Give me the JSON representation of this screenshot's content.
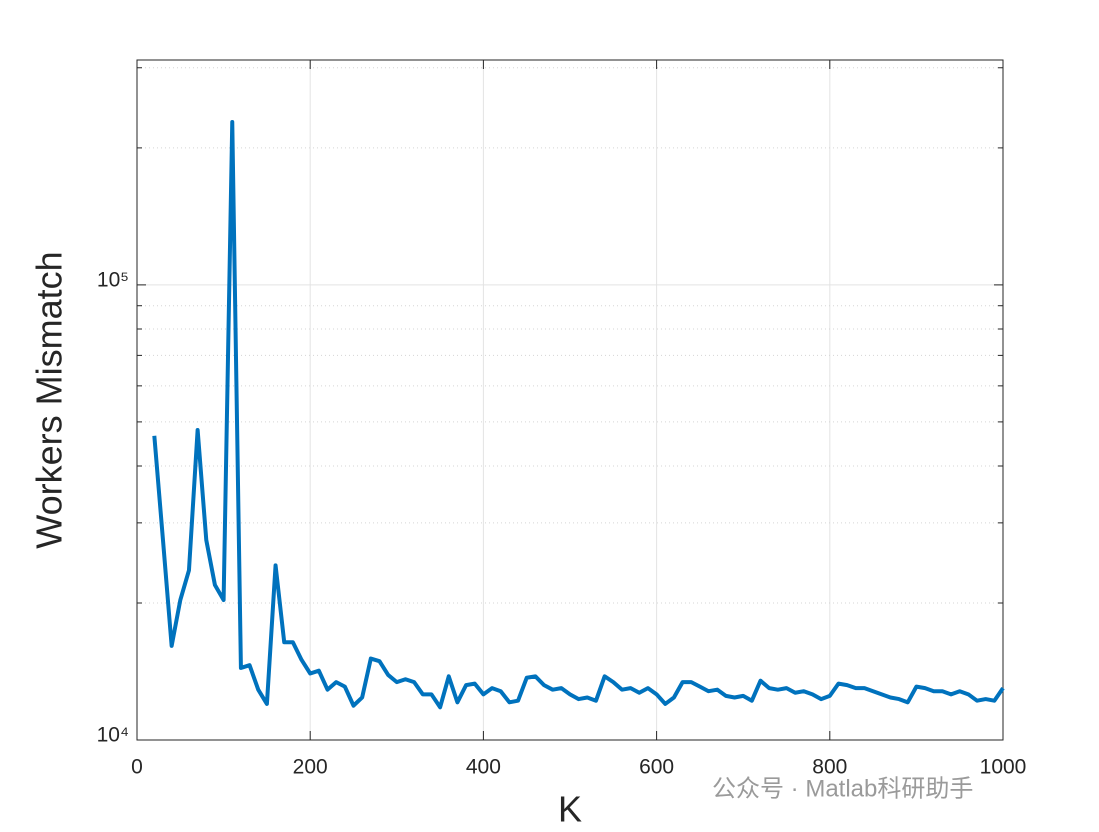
{
  "chart_data": {
    "type": "line",
    "log_y": true,
    "grid": true,
    "minor_grid": true,
    "xlabel": "K",
    "ylabel": "Workers Mismatch",
    "watermark": "公众号 · Matlab科研助手",
    "xlim": [
      0,
      1000
    ],
    "xticks": [
      0,
      200,
      400,
      600,
      800,
      1000
    ],
    "ylim": [
      10000,
      312000
    ],
    "yticks": [
      {
        "value": 10000,
        "label": "10⁴"
      },
      {
        "value": 100000,
        "label": "10⁵"
      }
    ],
    "yminorticks": [
      20000,
      30000,
      40000,
      50000,
      60000,
      70000,
      80000,
      90000,
      200000,
      300000
    ],
    "x": [
      20,
      30,
      40,
      50,
      60,
      70,
      80,
      90,
      100,
      110,
      120,
      130,
      140,
      150,
      160,
      170,
      180,
      190,
      200,
      210,
      220,
      230,
      240,
      250,
      260,
      270,
      280,
      290,
      300,
      310,
      320,
      330,
      340,
      350,
      360,
      370,
      380,
      390,
      400,
      410,
      420,
      430,
      440,
      450,
      460,
      470,
      480,
      490,
      500,
      510,
      520,
      530,
      540,
      550,
      560,
      570,
      580,
      590,
      600,
      610,
      620,
      630,
      640,
      650,
      660,
      670,
      680,
      690,
      700,
      710,
      720,
      730,
      740,
      750,
      760,
      770,
      780,
      790,
      800,
      810,
      820,
      830,
      840,
      850,
      860,
      870,
      880,
      890,
      900,
      910,
      920,
      930,
      940,
      950,
      960,
      970,
      980,
      990,
      1000
    ],
    "series": [
      {
        "color": "#0072bd",
        "values": [
          46600,
          27500,
          16100,
          20300,
          23600,
          48000,
          27500,
          21900,
          20300,
          228000,
          14400,
          14600,
          12900,
          12000,
          24200,
          16400,
          16400,
          15000,
          14000,
          14200,
          12900,
          13400,
          13100,
          11900,
          12400,
          15100,
          14900,
          13900,
          13400,
          13600,
          13400,
          12600,
          12600,
          11800,
          13800,
          12100,
          13200,
          13300,
          12600,
          13000,
          12800,
          12100,
          12200,
          13700,
          13800,
          13200,
          12900,
          13000,
          12600,
          12300,
          12400,
          12200,
          13800,
          13400,
          12900,
          13000,
          12700,
          13000,
          12600,
          12000,
          12400,
          13400,
          13400,
          13100,
          12800,
          12900,
          12500,
          12400,
          12500,
          12200,
          13500,
          13000,
          12900,
          13000,
          12700,
          12800,
          12600,
          12300,
          12500,
          13300,
          13200,
          13000,
          13000,
          12800,
          12600,
          12400,
          12300,
          12100,
          13100,
          13000,
          12800,
          12800,
          12600,
          12800,
          12600,
          12200,
          12300,
          12200,
          13000
        ]
      }
    ]
  }
}
